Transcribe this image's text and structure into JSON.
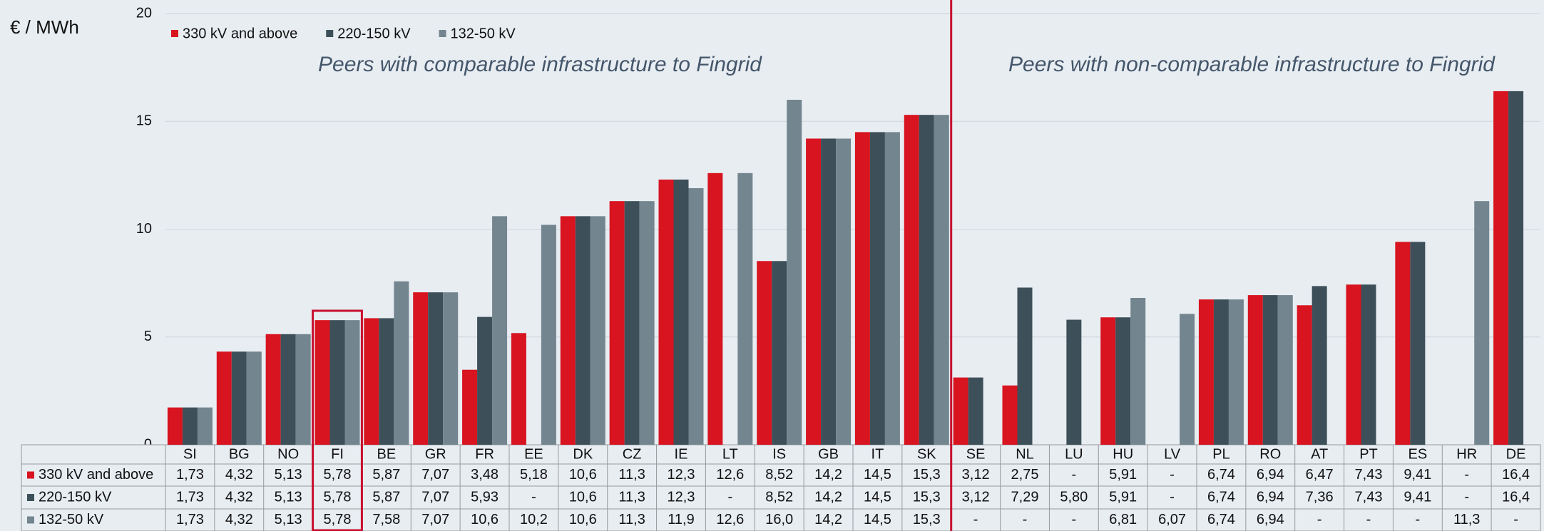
{
  "chart_data": {
    "type": "bar",
    "ylabel": "€ / MWh",
    "annotations": [
      "Peers with comparable infrastructure to Fingrid",
      "Peers with non-comparable infrastructure to Fingrid"
    ],
    "categories": [
      "SI",
      "BG",
      "NO",
      "FI",
      "BE",
      "GR",
      "FR",
      "EE",
      "DK",
      "CZ",
      "IE",
      "LT",
      "IS",
      "GB",
      "IT",
      "SK",
      "SE",
      "NL",
      "LU",
      "HU",
      "LV",
      "PL",
      "RO",
      "AT",
      "PT",
      "ES",
      "HR",
      "DE"
    ],
    "series": [
      {
        "name": "330 kV and above",
        "color": "#d7141f",
        "values": [
          1.73,
          4.32,
          5.13,
          5.78,
          5.87,
          7.07,
          3.48,
          5.18,
          10.6,
          11.3,
          12.3,
          12.6,
          8.52,
          14.2,
          14.5,
          15.3,
          3.12,
          2.75,
          null,
          5.91,
          null,
          6.74,
          6.94,
          6.47,
          7.43,
          9.41,
          null,
          16.4
        ],
        "value_labels": [
          "1,73",
          "4,32",
          "5,13",
          "5,78",
          "5,87",
          "7,07",
          "3,48",
          "5,18",
          "10,6",
          "11,3",
          "12,3",
          "12,6",
          "8,52",
          "14,2",
          "14,5",
          "15,3",
          "3,12",
          "2,75",
          "-",
          "5,91",
          "-",
          "6,74",
          "6,94",
          "6,47",
          "7,43",
          "9,41",
          "-",
          "16,4"
        ]
      },
      {
        "name": "220-150 kV",
        "color": "#3d5059",
        "values": [
          1.73,
          4.32,
          5.13,
          5.78,
          5.87,
          7.07,
          5.93,
          null,
          10.6,
          11.3,
          12.3,
          null,
          8.52,
          14.2,
          14.5,
          15.3,
          3.12,
          7.29,
          5.8,
          5.91,
          null,
          6.74,
          6.94,
          7.36,
          7.43,
          9.41,
          null,
          16.4
        ],
        "value_labels": [
          "1,73",
          "4,32",
          "5,13",
          "5,78",
          "5,87",
          "7,07",
          "5,93",
          "-",
          "10,6",
          "11,3",
          "12,3",
          "-",
          "8,52",
          "14,2",
          "14,5",
          "15,3",
          "3,12",
          "7,29",
          "5,80",
          "5,91",
          "-",
          "6,74",
          "6,94",
          "7,36",
          "7,43",
          "9,41",
          "-",
          "16,4"
        ]
      },
      {
        "name": "132-50 kV",
        "color": "#73868f",
        "values": [
          1.73,
          4.32,
          5.13,
          5.78,
          7.58,
          7.07,
          10.6,
          10.2,
          10.6,
          11.3,
          11.9,
          12.6,
          16.0,
          14.2,
          14.5,
          15.3,
          null,
          null,
          null,
          6.81,
          6.07,
          6.74,
          6.94,
          null,
          null,
          null,
          11.3,
          null
        ],
        "value_labels": [
          "1,73",
          "4,32",
          "5,13",
          "5,78",
          "7,58",
          "7,07",
          "10,6",
          "10,2",
          "10,6",
          "11,3",
          "11,9",
          "12,6",
          "16,0",
          "14,2",
          "14,5",
          "15,3",
          "-",
          "-",
          "-",
          "6,81",
          "6,07",
          "6,74",
          "6,94",
          "-",
          "-",
          "-",
          "11,3",
          "-"
        ]
      }
    ],
    "ylim": [
      0,
      20
    ],
    "yticks": [
      0,
      5,
      10,
      15,
      20
    ],
    "grid": true,
    "legend": "top-left"
  }
}
